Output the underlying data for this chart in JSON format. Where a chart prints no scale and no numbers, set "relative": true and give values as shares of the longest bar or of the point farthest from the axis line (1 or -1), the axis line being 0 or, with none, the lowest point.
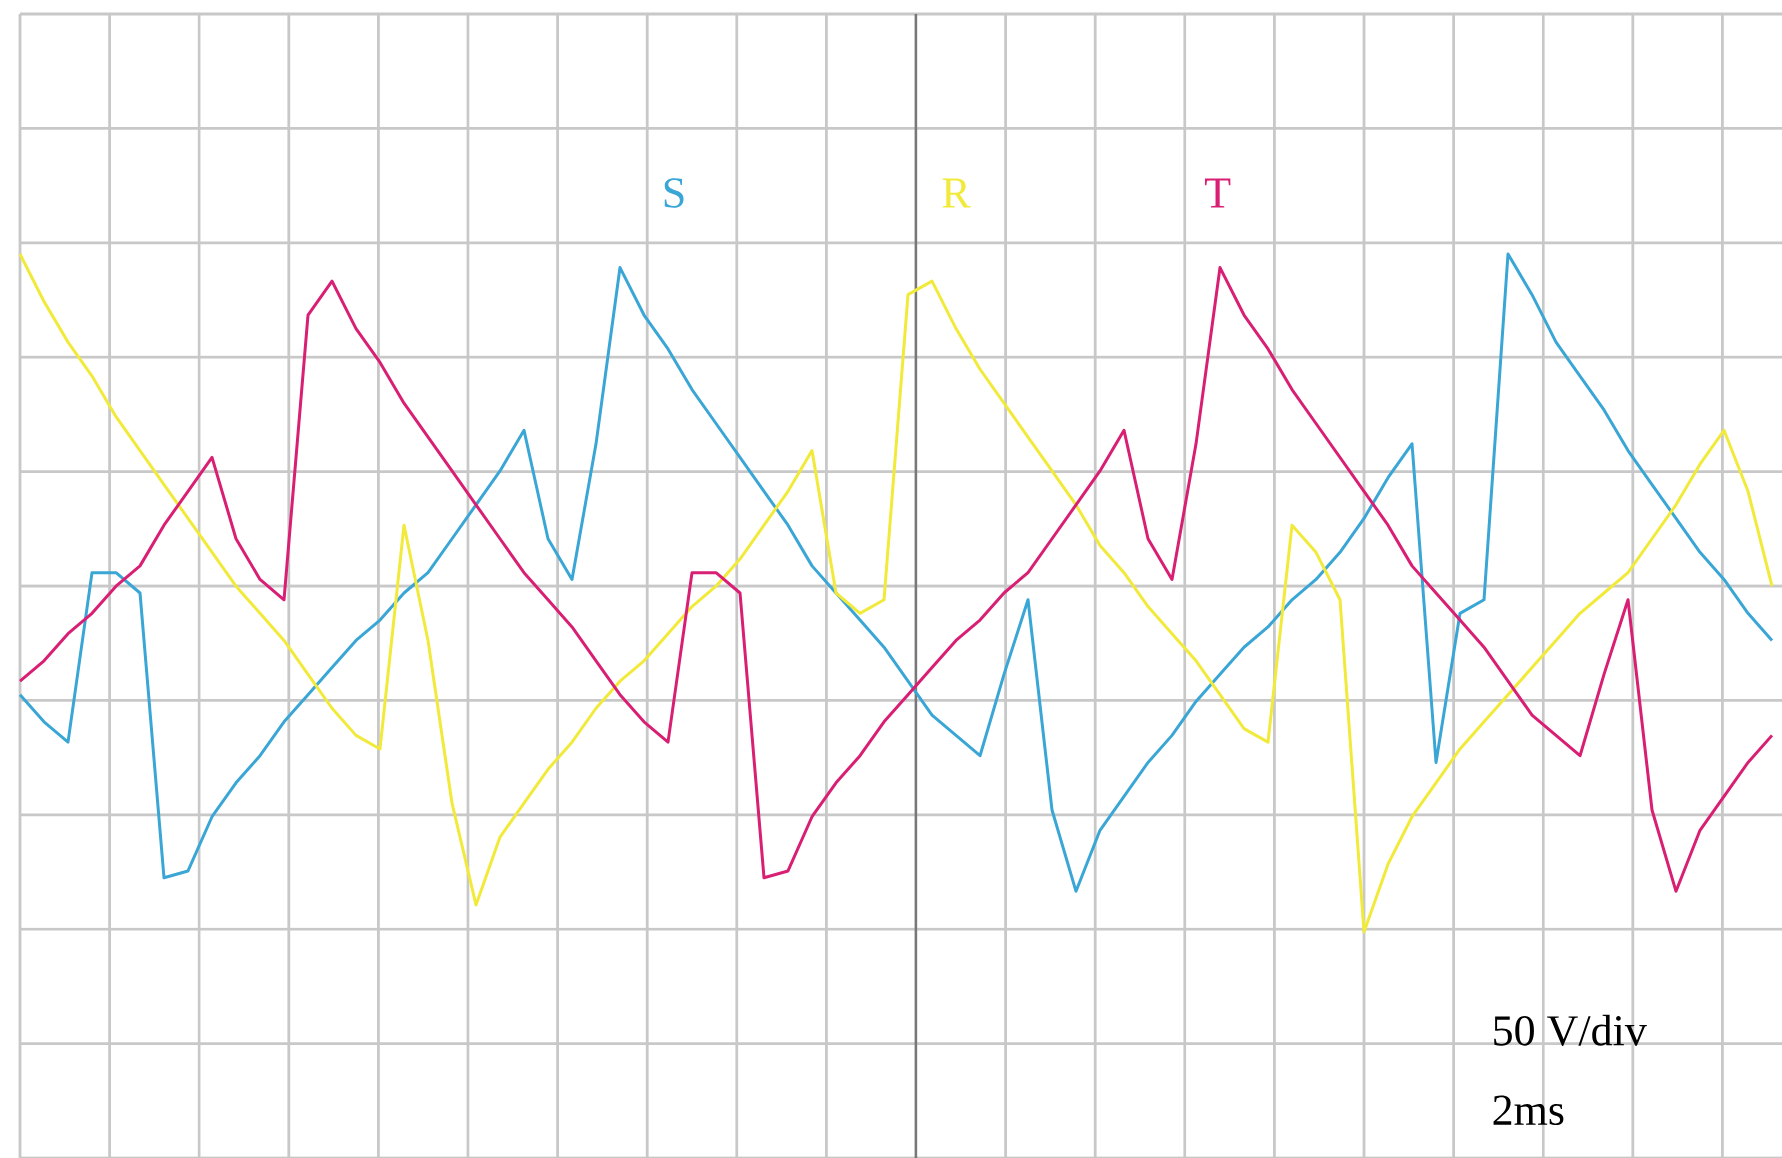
{
  "chart_data": {
    "type": "line",
    "relative": true,
    "grid": true,
    "marker": "none",
    "line_style": "solid",
    "categories": [
      null,
      null,
      null,
      null,
      null,
      null,
      null,
      null,
      null,
      null,
      null,
      null,
      null,
      null,
      null,
      null,
      null,
      null,
      null,
      null,
      null,
      null,
      null,
      null,
      null,
      null,
      null,
      null,
      null,
      null,
      null,
      null,
      null,
      null,
      null,
      null,
      null,
      null,
      null,
      null,
      null,
      null,
      null,
      null,
      null,
      null,
      null,
      null,
      null,
      null,
      null,
      null,
      null,
      null,
      null,
      null,
      null,
      null,
      null,
      null,
      null,
      null,
      null,
      null,
      null,
      null,
      null,
      null,
      null,
      null,
      null,
      null,
      null,
      null
    ],
    "series": [
      {
        "name": "S",
        "color": "#3aa6d6",
        "values": [
          0.35,
          0.31,
          0.28,
          0.53,
          0.53,
          0.5,
          0.08,
          0.09,
          0.17,
          0.22,
          0.26,
          0.31,
          0.35,
          0.39,
          0.43,
          0.46,
          0.5,
          0.53,
          0.58,
          0.63,
          0.68,
          0.74,
          0.58,
          0.52,
          0.72,
          0.98,
          0.91,
          0.86,
          0.8,
          0.75,
          0.7,
          0.65,
          0.6,
          0.54,
          0.5,
          0.46,
          0.42,
          0.37,
          0.32,
          0.29,
          0.26,
          0.38,
          0.49,
          0.18,
          0.06,
          0.15,
          0.2,
          0.25,
          0.29,
          0.34,
          0.38,
          0.42,
          0.45,
          0.49,
          0.52,
          0.56,
          0.61,
          0.67,
          0.72,
          0.25,
          0.47,
          0.49,
          1.0,
          0.94,
          0.87,
          0.82,
          0.77,
          0.71,
          0.66,
          0.61,
          0.56,
          0.52,
          0.47,
          0.43
        ]
      },
      {
        "name": "R",
        "color": "#f2ea3a",
        "values": [
          1.0,
          0.93,
          0.87,
          0.82,
          0.76,
          0.71,
          0.66,
          0.61,
          0.56,
          0.51,
          0.47,
          0.43,
          0.38,
          0.33,
          0.29,
          0.27,
          0.6,
          0.43,
          0.19,
          0.04,
          0.14,
          0.19,
          0.24,
          0.28,
          0.33,
          0.37,
          0.4,
          0.44,
          0.48,
          0.51,
          0.55,
          0.6,
          0.65,
          0.71,
          0.5,
          0.47,
          0.49,
          0.94,
          0.96,
          0.89,
          0.83,
          0.78,
          0.73,
          0.68,
          0.63,
          0.57,
          0.53,
          0.48,
          0.44,
          0.4,
          0.35,
          0.3,
          0.28,
          0.6,
          0.56,
          0.49,
          0.0,
          0.1,
          0.17,
          0.22,
          0.27,
          0.31,
          0.35,
          0.39,
          0.43,
          0.47,
          0.5,
          0.53,
          0.58,
          0.63,
          0.69,
          0.74,
          0.65,
          0.51
        ]
      },
      {
        "name": "T",
        "color": "#d81f74",
        "values": [
          0.37,
          0.4,
          0.44,
          0.47,
          0.51,
          0.54,
          0.6,
          0.65,
          0.7,
          0.58,
          0.52,
          0.49,
          0.91,
          0.96,
          0.89,
          0.84,
          0.78,
          0.73,
          0.68,
          0.63,
          0.58,
          0.53,
          0.49,
          0.45,
          0.4,
          0.35,
          0.31,
          0.28,
          0.53,
          0.53,
          0.5,
          0.08,
          0.09,
          0.17,
          0.22,
          0.26,
          0.31,
          0.35,
          0.39,
          0.43,
          0.46,
          0.5,
          0.53,
          0.58,
          0.63,
          0.68,
          0.74,
          0.58,
          0.52,
          0.72,
          0.98,
          0.91,
          0.86,
          0.8,
          0.75,
          0.7,
          0.65,
          0.6,
          0.54,
          0.5,
          0.46,
          0.42,
          0.37,
          0.32,
          0.29,
          0.26,
          0.38,
          0.49,
          0.18,
          0.06,
          0.15,
          0.2,
          0.25,
          0.29
        ]
      }
    ],
    "annotations": [
      "50 V/div",
      "2ms"
    ]
  }
}
